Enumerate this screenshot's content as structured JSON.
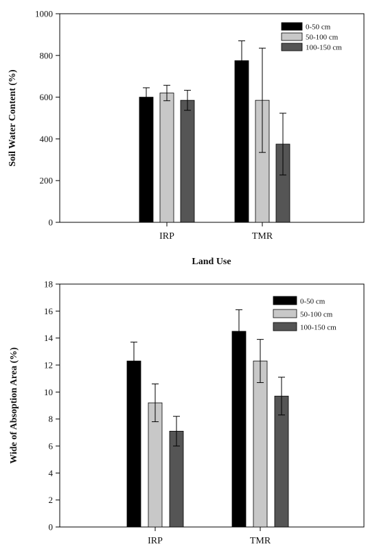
{
  "chart_data": [
    {
      "type": "bar",
      "categories": [
        "IRP",
        "TMR"
      ],
      "series": [
        {
          "name": "0-50  cm",
          "color": "#000000",
          "values": [
            600,
            775
          ],
          "errors": [
            45,
            95
          ]
        },
        {
          "name": "50-100 cm",
          "color": "#c8c8c8",
          "values": [
            620,
            585
          ],
          "errors": [
            37,
            250
          ]
        },
        {
          "name": "100-150 cm",
          "color": "#555555",
          "values": [
            585,
            375
          ],
          "errors": [
            48,
            148
          ]
        }
      ],
      "xlabel": "Land Use",
      "ylabel": "Soil Water Content (%)",
      "ylim": [
        0,
        1000
      ],
      "yticks": [
        "0",
        "200",
        "400",
        "600",
        "800",
        "1000"
      ],
      "legend": "top-right",
      "grid": false
    },
    {
      "type": "bar",
      "categories": [
        "IRP",
        "TMR"
      ],
      "series": [
        {
          "name": "0-50 cm",
          "color": "#000000",
          "values": [
            12.3,
            14.5
          ],
          "errors": [
            1.4,
            1.6
          ]
        },
        {
          "name": "50-100 cm",
          "color": "#c8c8c8",
          "values": [
            9.2,
            12.3
          ],
          "errors": [
            1.4,
            1.6
          ]
        },
        {
          "name": "100-150 cm",
          "color": "#555555",
          "values": [
            7.1,
            9.7
          ],
          "errors": [
            1.1,
            1.4
          ]
        }
      ],
      "xlabel": "",
      "ylabel": "Wide of Absoption Area (%)",
      "ylim": [
        0,
        18
      ],
      "yticks": [
        "0",
        "2",
        "4",
        "6",
        "8",
        "10",
        "12",
        "14",
        "16",
        "18"
      ],
      "legend": "top-right",
      "grid": false
    }
  ]
}
